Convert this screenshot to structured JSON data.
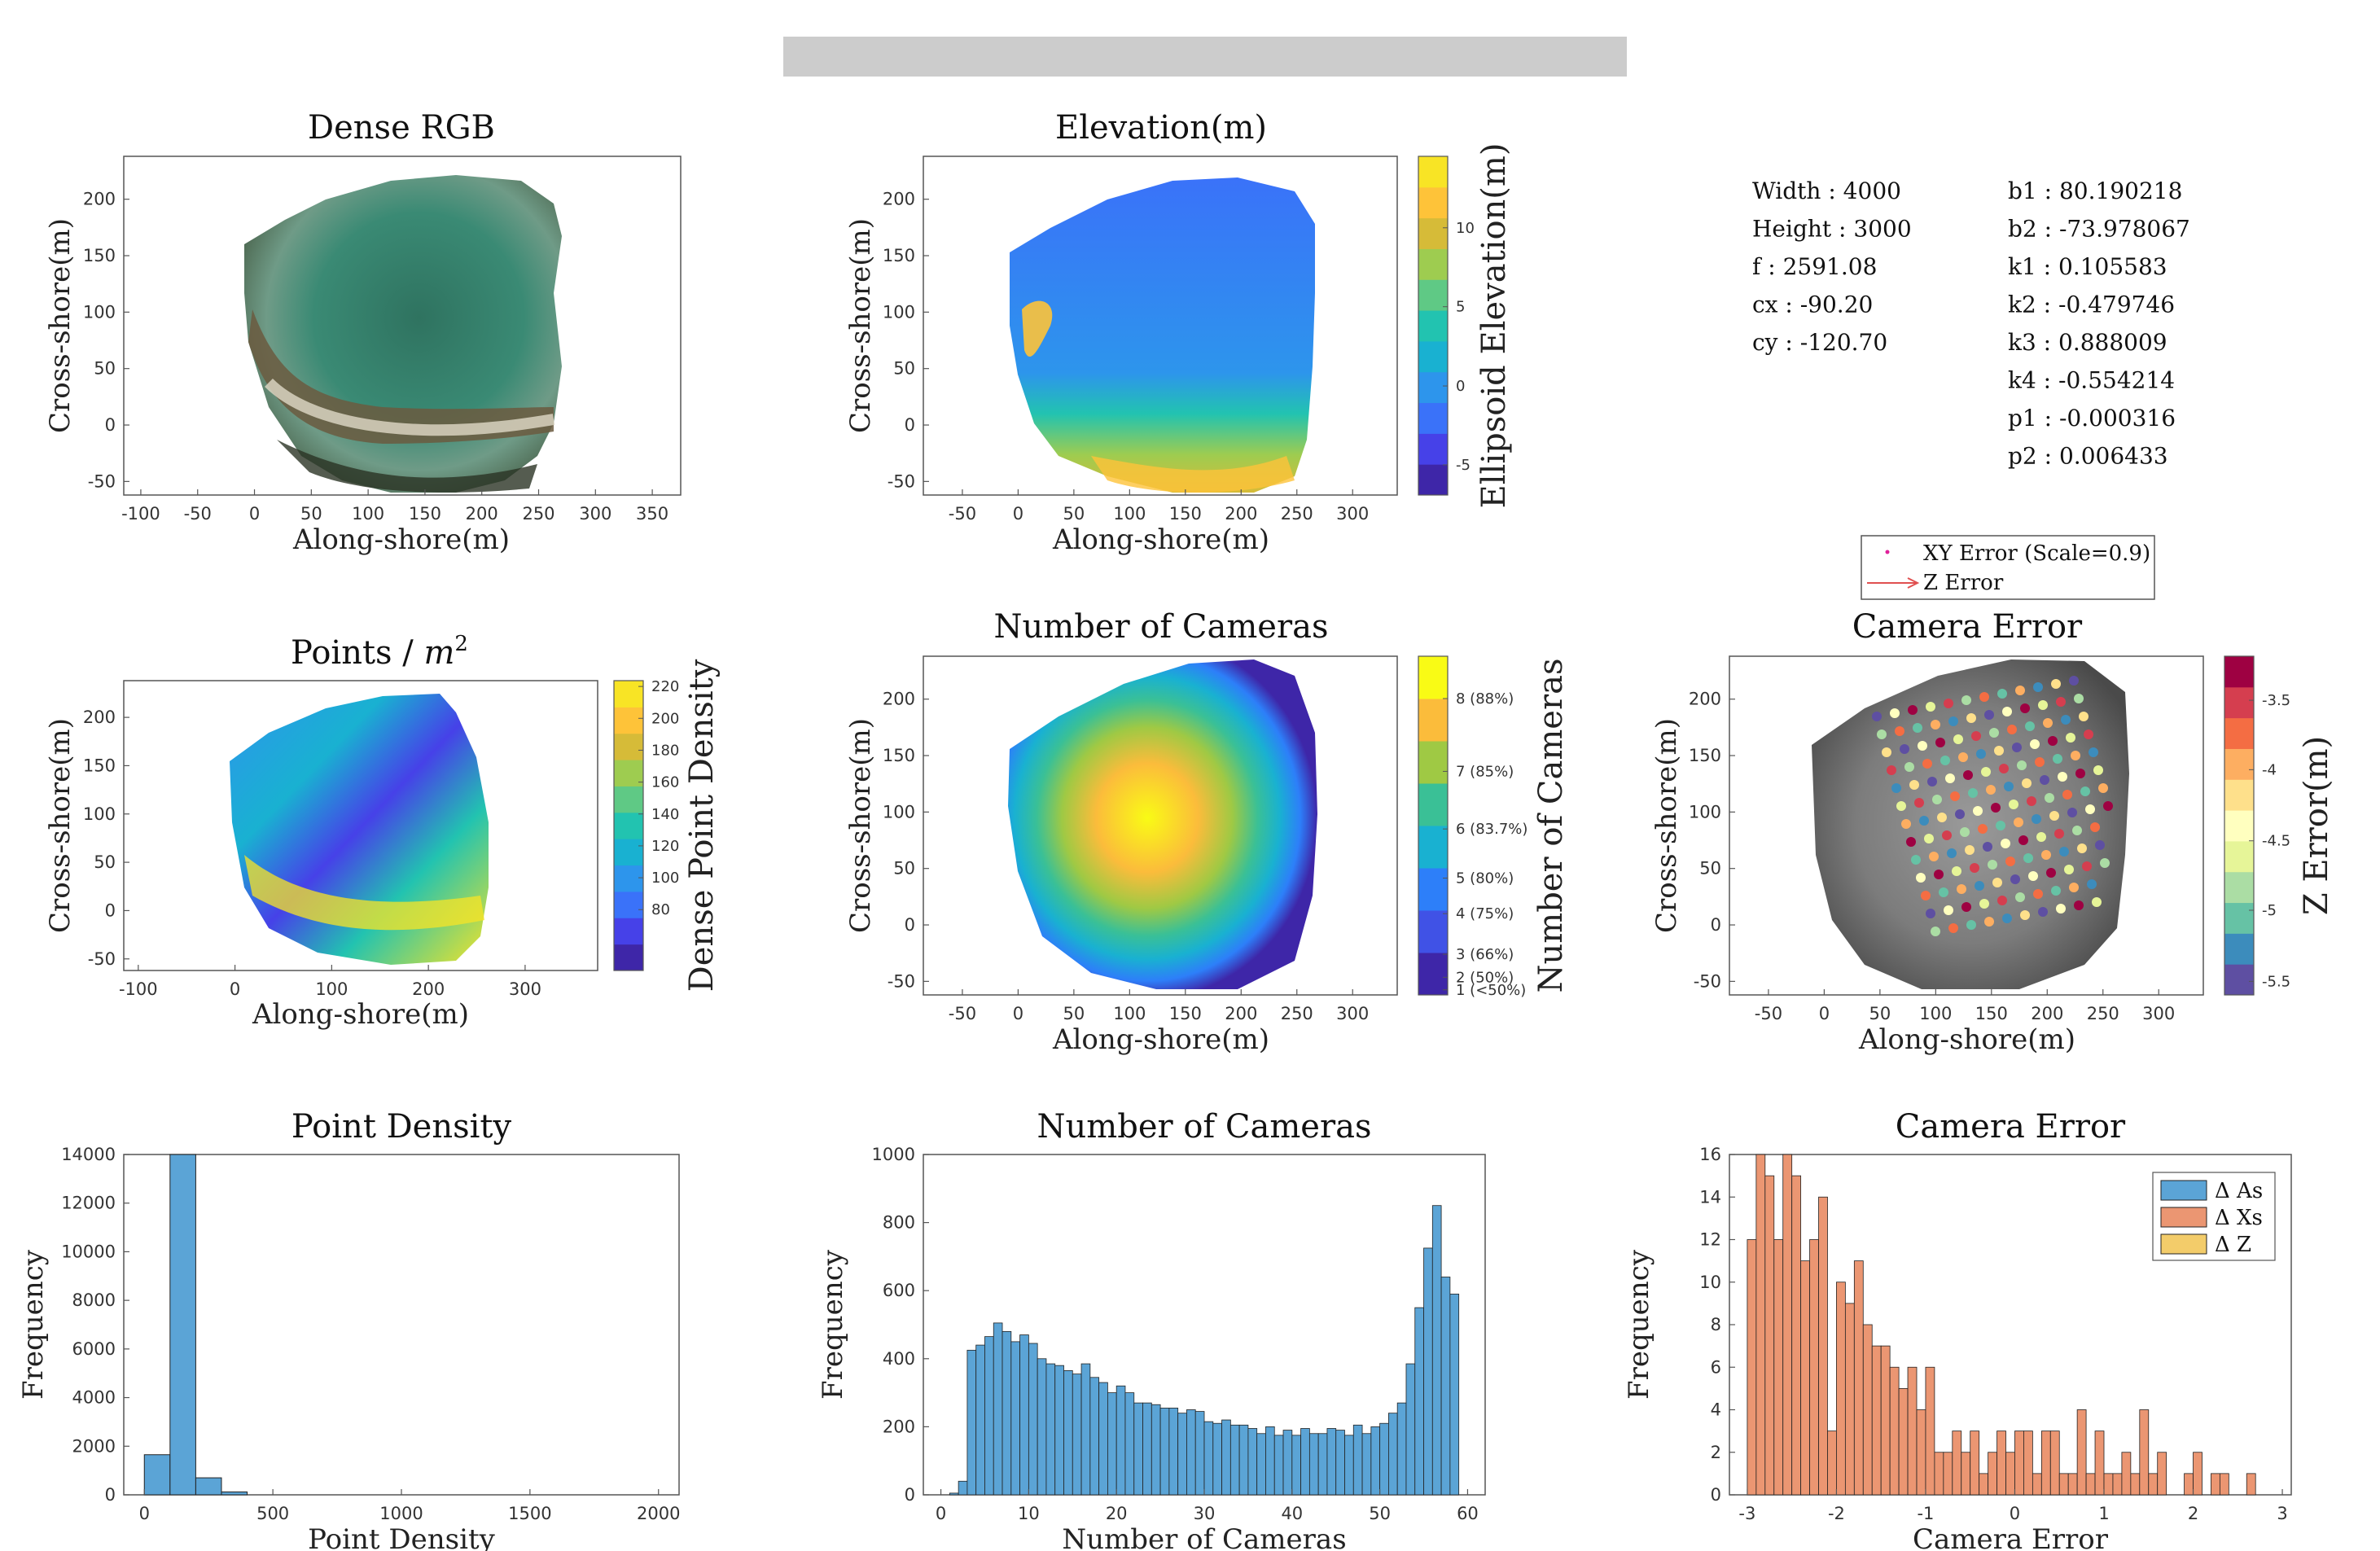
{
  "header_bar_color": "#cccccc",
  "panels": {
    "dense_rgb": {
      "title": "Dense RGB",
      "xlabel": "Along-shore(m)",
      "ylabel": "Cross-shore(m)"
    },
    "elevation": {
      "title": "Elevation(m)",
      "xlabel": "Along-shore(m)",
      "ylabel": "Cross-shore(m)",
      "colorbar_label": "Ellipsoid Elevation(m)"
    },
    "points_density": {
      "title_text": "Points / ",
      "title_math": "m",
      "title_sup": "2",
      "xlabel": "Along-shore(m)",
      "ylabel": "Cross-shore(m)",
      "colorbar_label": "Dense Point Density"
    },
    "num_cameras_map": {
      "title": "Number of Cameras",
      "xlabel": "Along-shore(m)",
      "ylabel": "Cross-shore(m)",
      "colorbar_label": "Number of Cameras"
    },
    "camera_error_map": {
      "title": "Camera Error",
      "xlabel": "Along-shore(m)",
      "ylabel": "Cross-shore(m)",
      "colorbar_label": "Z Error(m)",
      "legend": {
        "xy": "XY Error (Scale=0.9)",
        "z": "Z Error"
      }
    }
  },
  "camera_params_left": [
    {
      "key": "Width",
      "value": "4000"
    },
    {
      "key": "Height",
      "value": "3000"
    },
    {
      "key": "f",
      "value": "2591.08"
    },
    {
      "key": "cx",
      "value": "-90.20"
    },
    {
      "key": "cy",
      "value": "-120.70"
    }
  ],
  "camera_params_right": [
    {
      "key": "b1",
      "value": "80.190218"
    },
    {
      "key": "b2",
      "value": "-73.978067"
    },
    {
      "key": "k1",
      "value": "0.105583"
    },
    {
      "key": "k2",
      "value": "-0.479746"
    },
    {
      "key": "k3",
      "value": "0.888009"
    },
    {
      "key": "k4",
      "value": "-0.554214"
    },
    {
      "key": "p1",
      "value": "-0.000316"
    },
    {
      "key": "p2",
      "value": "0.006433"
    }
  ],
  "map_axes": {
    "dense_rgb": {
      "xlim": [
        -115,
        375
      ],
      "ylim": [
        -62,
        238
      ],
      "xticks": [
        -100,
        -50,
        0,
        50,
        100,
        150,
        200,
        250,
        300,
        350
      ],
      "yticks": [
        -50,
        0,
        50,
        100,
        150,
        200
      ]
    },
    "elevation": {
      "xlim": [
        -85,
        340
      ],
      "ylim": [
        -62,
        238
      ],
      "xticks": [
        -50,
        0,
        50,
        100,
        150,
        200,
        250,
        300
      ],
      "yticks": [
        -50,
        0,
        50,
        100,
        150,
        200
      ]
    },
    "points_density": {
      "xlim": [
        -115,
        375
      ],
      "ylim": [
        -62,
        238
      ],
      "xticks": [
        -100,
        0,
        100,
        200,
        300
      ],
      "yticks": [
        -50,
        0,
        50,
        100,
        150,
        200
      ]
    },
    "num_cameras_map": {
      "xlim": [
        -85,
        340
      ],
      "ylim": [
        -62,
        238
      ],
      "xticks": [
        -50,
        0,
        50,
        100,
        150,
        200,
        250,
        300
      ],
      "yticks": [
        -50,
        0,
        50,
        100,
        150,
        200
      ]
    },
    "camera_error_map": {
      "xlim": [
        -85,
        340
      ],
      "ylim": [
        -62,
        238
      ],
      "xticks": [
        -50,
        0,
        50,
        100,
        150,
        200,
        250,
        300
      ],
      "yticks": [
        -50,
        0,
        50,
        100,
        150,
        200
      ]
    }
  },
  "colorbars": {
    "elevation": {
      "colors": [
        "#3e26a8",
        "#4641e8",
        "#3a72f9",
        "#2d95ec",
        "#19b1d1",
        "#22c3b0",
        "#5fc985",
        "#9ecc50",
        "#d6bb38",
        "#fec339",
        "#f8e425"
      ],
      "ticks": [
        "10",
        "5",
        "0",
        "-5"
      ],
      "tick_fracs": [
        0.789,
        0.556,
        0.322,
        0.089
      ]
    },
    "points_density": {
      "colors": [
        "#3e26a8",
        "#4641e8",
        "#3a72f9",
        "#2d95ec",
        "#19b1d1",
        "#22c3b0",
        "#5fc985",
        "#9ecc50",
        "#d6bb38",
        "#fec339",
        "#f8e425"
      ],
      "ticks": [
        "220",
        "200",
        "180",
        "160",
        "140",
        "120",
        "100",
        "80"
      ],
      "tick_fracs": [
        0.98,
        0.87,
        0.76,
        0.65,
        0.54,
        0.43,
        0.32,
        0.21
      ]
    },
    "num_cameras": {
      "colors": [
        "#3e26a8",
        "#4052e6",
        "#2d7ff9",
        "#19b1d1",
        "#3ac096",
        "#9fc944",
        "#fbbc3b",
        "#f9fb15"
      ],
      "ticks": [
        "8 (88%)",
        "7 (85%)",
        "6 (83.7%)",
        "5 (80%)",
        "4 (75%)",
        "3 (66%)",
        "2 (50%)",
        "1 (<50%)"
      ],
      "tick_fracs": [
        0.875,
        0.66,
        0.49,
        0.345,
        0.24,
        0.12,
        0.052,
        0.015
      ]
    },
    "z_error": {
      "colors": [
        "#5e4fa2",
        "#3c8cbc",
        "#66c2a5",
        "#abdda4",
        "#e6f598",
        "#ffffbf",
        "#fee08b",
        "#fdae61",
        "#f46d43",
        "#d53e4f",
        "#9e0142"
      ],
      "ticks": [
        "-3.5",
        "-4",
        "-4.5",
        "-5",
        "-5.5"
      ],
      "tick_fracs": [
        0.87,
        0.665,
        0.455,
        0.25,
        0.04
      ]
    }
  },
  "chart_data": [
    {
      "type": "bar",
      "title": "Point Density",
      "xlabel": "Point Density",
      "ylabel": "Frequency",
      "xlim": [
        -80,
        2080
      ],
      "ylim": [
        0,
        14000
      ],
      "xticks": [
        0,
        500,
        1000,
        1500,
        2000
      ],
      "yticks": [
        0,
        2000,
        4000,
        6000,
        8000,
        10000,
        12000,
        14000
      ],
      "bin_edges": [
        0,
        100,
        200,
        300,
        400
      ],
      "values": [
        1650,
        14000,
        700,
        120
      ],
      "color": "#5ba4d6"
    },
    {
      "type": "bar",
      "title": "Number of Cameras",
      "xlabel": "Number of Cameras",
      "ylabel": "Frequency",
      "xlim": [
        -2,
        62
      ],
      "ylim": [
        0,
        1000
      ],
      "xticks": [
        0,
        10,
        20,
        30,
        40,
        50,
        60
      ],
      "yticks": [
        0,
        200,
        400,
        600,
        800,
        1000
      ],
      "bin_start": 1,
      "bin_width": 1,
      "values": [
        5,
        40,
        425,
        440,
        465,
        505,
        480,
        450,
        470,
        445,
        400,
        385,
        380,
        365,
        355,
        385,
        345,
        330,
        300,
        320,
        300,
        270,
        270,
        265,
        255,
        255,
        240,
        250,
        245,
        215,
        210,
        220,
        205,
        205,
        195,
        180,
        200,
        175,
        190,
        175,
        195,
        180,
        180,
        195,
        190,
        175,
        205,
        180,
        200,
        210,
        240,
        270,
        385,
        550,
        725,
        850,
        640,
        590
      ],
      "color": "#5ba4d6"
    },
    {
      "type": "bar",
      "title": "Camera Error",
      "xlabel": "Camera Error",
      "ylabel": "Frequency",
      "xlim": [
        -3.2,
        3.1
      ],
      "ylim": [
        0,
        16
      ],
      "xticks": [
        -3,
        -2,
        -1,
        0,
        1,
        2,
        3
      ],
      "yticks": [
        0,
        2,
        4,
        6,
        8,
        10,
        12,
        14,
        16
      ],
      "bin_start": -3.0,
      "bin_width": 0.1,
      "values": [
        12,
        16,
        15,
        12,
        16,
        15,
        11,
        12,
        14,
        3,
        10,
        9,
        11,
        8,
        7,
        7,
        6,
        5,
        6,
        4,
        6,
        2,
        2,
        3,
        2,
        3,
        1,
        2,
        3,
        2,
        3,
        3,
        1,
        3,
        3,
        1,
        1,
        4,
        1,
        3,
        1,
        1,
        2,
        1,
        4,
        1,
        2,
        0,
        0,
        1,
        2,
        0,
        1,
        1,
        0,
        0,
        1
      ],
      "series": [
        {
          "name": "Δ As",
          "color": "#5ba4d6"
        },
        {
          "name": "Δ Xs",
          "color": "#eb9672"
        },
        {
          "name": "Δ Z",
          "color": "#f3cc6a"
        }
      ]
    }
  ]
}
